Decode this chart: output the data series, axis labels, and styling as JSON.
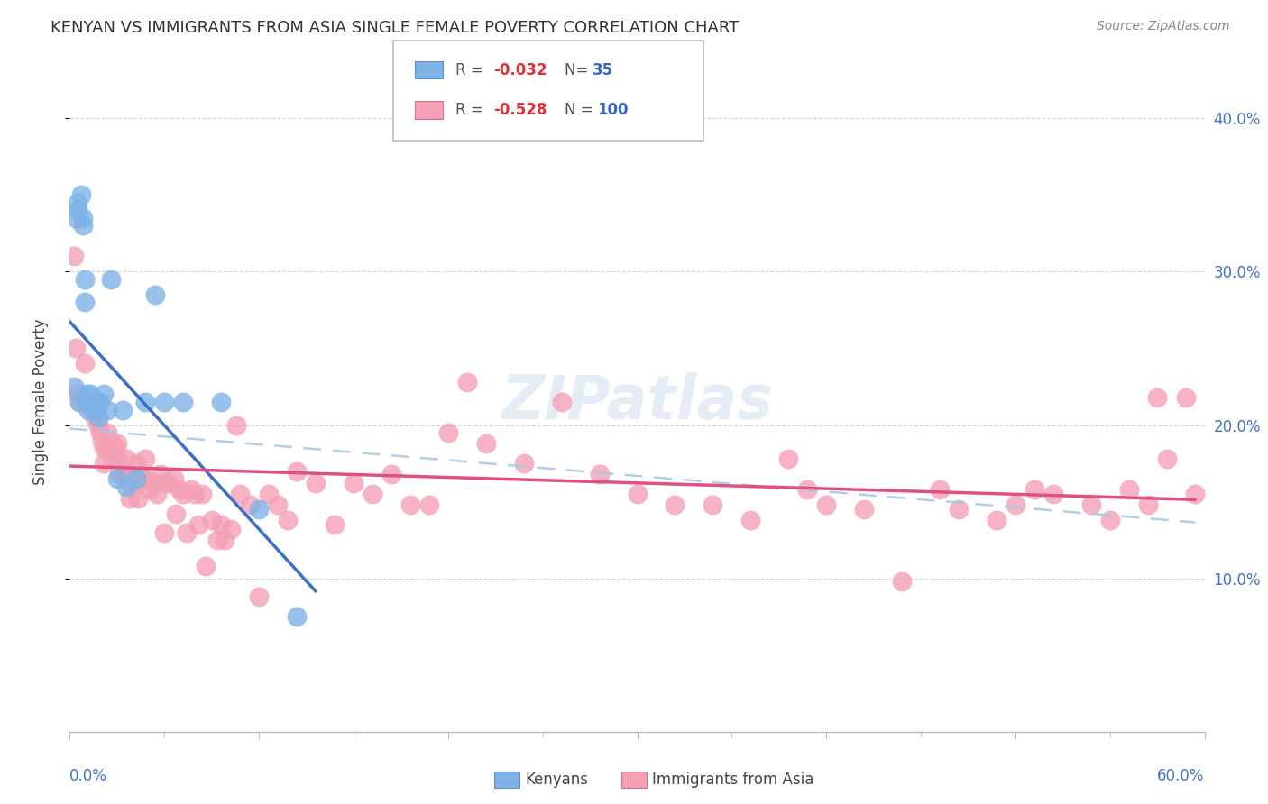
{
  "title": "KENYAN VS IMMIGRANTS FROM ASIA SINGLE FEMALE POVERTY CORRELATION CHART",
  "source": "Source: ZipAtlas.com",
  "ylabel": "Single Female Poverty",
  "ylabel_right_ticks": [
    "10.0%",
    "20.0%",
    "30.0%",
    "40.0%"
  ],
  "ylabel_right_vals": [
    0.1,
    0.2,
    0.3,
    0.4
  ],
  "xlim": [
    0.0,
    0.6
  ],
  "ylim": [
    0.0,
    0.43
  ],
  "kenyan_R": -0.032,
  "kenyan_N": 35,
  "asia_R": -0.528,
  "asia_N": 100,
  "kenyan_color": "#7EB3E8",
  "kenyan_line_color": "#3B6EC4",
  "asia_color": "#F4A0B5",
  "asia_line_color": "#E05080",
  "background_color": "#FFFFFF",
  "grid_color": "#CCCCCC",
  "kenyan_x": [
    0.002,
    0.003,
    0.004,
    0.004,
    0.005,
    0.006,
    0.007,
    0.007,
    0.008,
    0.008,
    0.009,
    0.009,
    0.01,
    0.01,
    0.011,
    0.012,
    0.013,
    0.014,
    0.015,
    0.015,
    0.016,
    0.018,
    0.02,
    0.022,
    0.025,
    0.028,
    0.03,
    0.035,
    0.04,
    0.045,
    0.05,
    0.06,
    0.08,
    0.1,
    0.12
  ],
  "kenyan_y": [
    0.225,
    0.335,
    0.34,
    0.345,
    0.215,
    0.35,
    0.33,
    0.335,
    0.28,
    0.295,
    0.215,
    0.22,
    0.215,
    0.21,
    0.22,
    0.215,
    0.215,
    0.21,
    0.215,
    0.205,
    0.215,
    0.22,
    0.21,
    0.295,
    0.165,
    0.21,
    0.16,
    0.165,
    0.215,
    0.285,
    0.215,
    0.215,
    0.215,
    0.145,
    0.075
  ],
  "asia_x": [
    0.002,
    0.003,
    0.004,
    0.005,
    0.008,
    0.01,
    0.012,
    0.013,
    0.014,
    0.015,
    0.016,
    0.017,
    0.018,
    0.018,
    0.02,
    0.02,
    0.022,
    0.022,
    0.024,
    0.025,
    0.025,
    0.026,
    0.028,
    0.03,
    0.03,
    0.032,
    0.032,
    0.034,
    0.035,
    0.035,
    0.036,
    0.038,
    0.04,
    0.04,
    0.042,
    0.044,
    0.046,
    0.048,
    0.05,
    0.05,
    0.052,
    0.055,
    0.056,
    0.058,
    0.06,
    0.062,
    0.064,
    0.066,
    0.068,
    0.07,
    0.072,
    0.075,
    0.078,
    0.08,
    0.082,
    0.085,
    0.088,
    0.09,
    0.095,
    0.1,
    0.105,
    0.11,
    0.115,
    0.12,
    0.13,
    0.14,
    0.15,
    0.16,
    0.17,
    0.18,
    0.19,
    0.2,
    0.21,
    0.22,
    0.24,
    0.26,
    0.28,
    0.3,
    0.32,
    0.34,
    0.36,
    0.38,
    0.39,
    0.4,
    0.42,
    0.44,
    0.46,
    0.47,
    0.49,
    0.5,
    0.51,
    0.52,
    0.54,
    0.55,
    0.56,
    0.57,
    0.575,
    0.58,
    0.59,
    0.595
  ],
  "asia_y": [
    0.31,
    0.25,
    0.22,
    0.215,
    0.24,
    0.215,
    0.21,
    0.205,
    0.21,
    0.2,
    0.195,
    0.19,
    0.185,
    0.175,
    0.195,
    0.185,
    0.19,
    0.18,
    0.185,
    0.188,
    0.178,
    0.168,
    0.168,
    0.178,
    0.17,
    0.162,
    0.152,
    0.165,
    0.175,
    0.162,
    0.152,
    0.165,
    0.178,
    0.165,
    0.158,
    0.162,
    0.155,
    0.168,
    0.162,
    0.13,
    0.162,
    0.165,
    0.142,
    0.158,
    0.155,
    0.13,
    0.158,
    0.155,
    0.135,
    0.155,
    0.108,
    0.138,
    0.125,
    0.135,
    0.125,
    0.132,
    0.2,
    0.155,
    0.148,
    0.088,
    0.155,
    0.148,
    0.138,
    0.17,
    0.162,
    0.135,
    0.162,
    0.155,
    0.168,
    0.148,
    0.148,
    0.195,
    0.228,
    0.188,
    0.175,
    0.215,
    0.168,
    0.155,
    0.148,
    0.148,
    0.138,
    0.178,
    0.158,
    0.148,
    0.145,
    0.098,
    0.158,
    0.145,
    0.138,
    0.148,
    0.158,
    0.155,
    0.148,
    0.138,
    0.158,
    0.148,
    0.218,
    0.178,
    0.218,
    0.155
  ]
}
